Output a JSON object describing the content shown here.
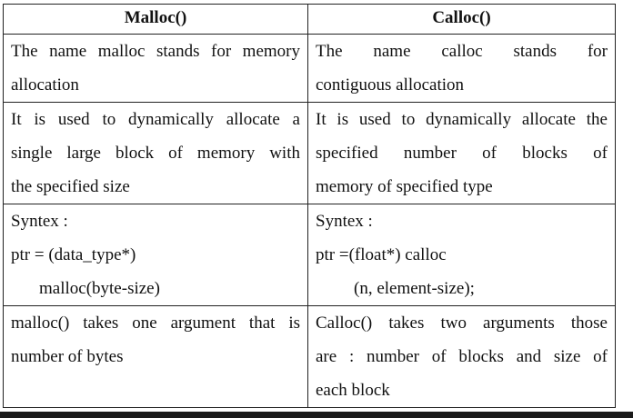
{
  "table": {
    "headers": [
      "Malloc()",
      "Calloc()"
    ],
    "rows": [
      {
        "left": [
          "The name malloc stands for memory",
          "allocation"
        ],
        "right": [
          "The name calloc stands for",
          "contiguous allocation"
        ]
      },
      {
        "left": [
          "It is used to dynamically allocate a",
          "single large block of memory with",
          "the specified size"
        ],
        "right": [
          "It is used to dynamically allocate the",
          "specified number of blocks of",
          "memory of specified type"
        ]
      },
      {
        "left": [
          "Syntex :",
          "ptr = (data_type*)",
          "malloc(byte-size)"
        ],
        "right": [
          "Syntex :",
          "ptr =(float*) calloc",
          "(n, element-size);"
        ]
      },
      {
        "left": [
          "malloc() takes one argument that is",
          "number of bytes"
        ],
        "right": [
          "Calloc() takes two arguments those",
          "are : number of blocks and size of",
          "each block"
        ]
      }
    ]
  }
}
